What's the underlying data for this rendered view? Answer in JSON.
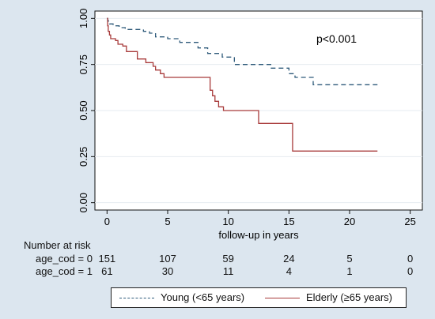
{
  "chart_data": {
    "type": "line",
    "annotation": "p<0.001",
    "xlabel": "follow-up in years",
    "ylabel": "",
    "xlim": [
      -1,
      26
    ],
    "ylim": [
      -0.04,
      1.04
    ],
    "x_ticks": [
      0,
      5,
      10,
      15,
      20,
      25
    ],
    "x_tick_labels": [
      "0",
      "5",
      "10",
      "15",
      "20",
      "25"
    ],
    "y_ticks": [
      0,
      0.25,
      0.5,
      0.75,
      1.0
    ],
    "y_tick_labels": [
      "0.00",
      "0.25",
      "0.50",
      "0.75",
      "1.00"
    ],
    "grid": "horizontal",
    "legend_position": "bottom",
    "series": [
      {
        "name": "Young (<65 years)",
        "color": "#2e5a7a",
        "style": "dashed",
        "steps": [
          [
            0,
            1.0
          ],
          [
            0.05,
            0.99
          ],
          [
            0.1,
            0.98
          ],
          [
            0.2,
            0.97
          ],
          [
            0.5,
            0.96
          ],
          [
            1,
            0.95
          ],
          [
            1.5,
            0.94
          ],
          [
            3,
            0.93
          ],
          [
            3.5,
            0.92
          ],
          [
            4,
            0.9
          ],
          [
            5,
            0.89
          ],
          [
            6,
            0.87
          ],
          [
            7.5,
            0.84
          ],
          [
            8.3,
            0.81
          ],
          [
            9.5,
            0.79
          ],
          [
            10.5,
            0.75
          ],
          [
            13.5,
            0.73
          ],
          [
            15,
            0.7
          ],
          [
            15.5,
            0.68
          ],
          [
            17,
            0.64
          ],
          [
            22.3,
            0.64
          ]
        ]
      },
      {
        "name": "Elderly (≥65 years)",
        "color": "#a83a3a",
        "style": "solid",
        "steps": [
          [
            0,
            1.0
          ],
          [
            0.05,
            0.96
          ],
          [
            0.1,
            0.93
          ],
          [
            0.2,
            0.91
          ],
          [
            0.3,
            0.89
          ],
          [
            0.7,
            0.88
          ],
          [
            0.9,
            0.86
          ],
          [
            1.3,
            0.85
          ],
          [
            1.6,
            0.82
          ],
          [
            2.5,
            0.78
          ],
          [
            3.2,
            0.76
          ],
          [
            3.8,
            0.74
          ],
          [
            4.0,
            0.72
          ],
          [
            4.4,
            0.7
          ],
          [
            4.7,
            0.68
          ],
          [
            8.5,
            0.61
          ],
          [
            8.7,
            0.58
          ],
          [
            8.9,
            0.55
          ],
          [
            9.2,
            0.52
          ],
          [
            9.6,
            0.5
          ],
          [
            12.5,
            0.43
          ],
          [
            15.3,
            0.28
          ],
          [
            22.3,
            0.28
          ]
        ]
      }
    ]
  },
  "risk_table": {
    "title": "Number at risk",
    "rows": [
      {
        "label": "age_cod = 0",
        "values": [
          "151",
          "107",
          "59",
          "24",
          "5",
          "0"
        ]
      },
      {
        "label": "age_cod = 1",
        "values": [
          "61",
          "30",
          "11",
          "4",
          "1",
          "0"
        ]
      }
    ]
  },
  "legend": {
    "young_label": "Young (<65 years)",
    "elderly_label": "Elderly (≥65 years)"
  }
}
